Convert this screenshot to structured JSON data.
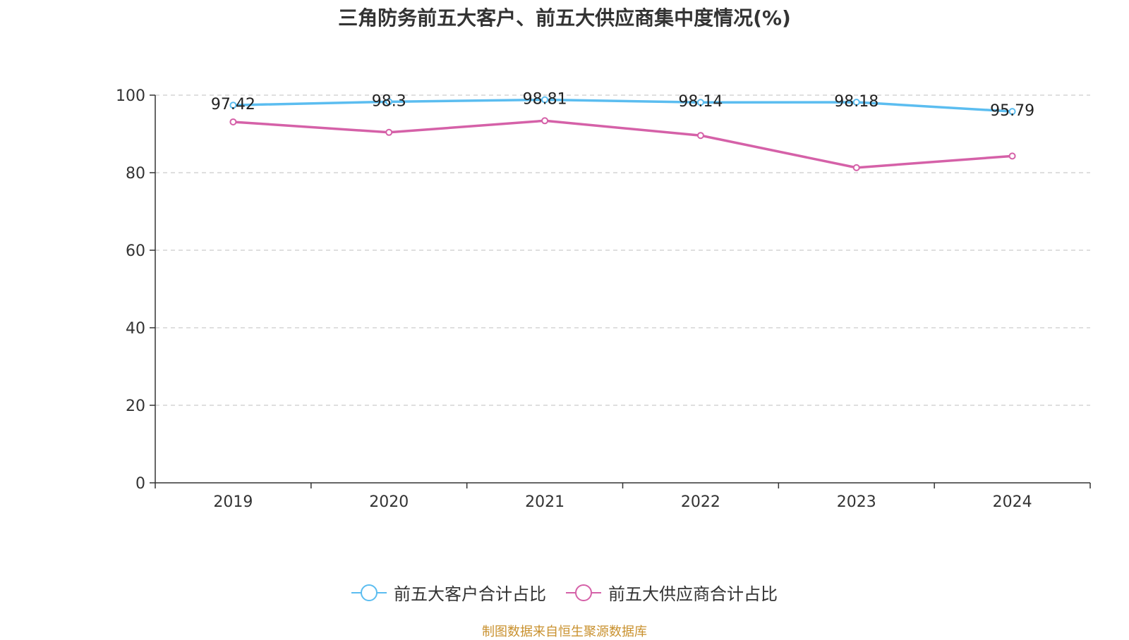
{
  "chart_data": {
    "type": "line",
    "title": "三角防务前五大客户、前五大供应商集中度情况(%)",
    "categories": [
      "2019",
      "2020",
      "2021",
      "2022",
      "2023",
      "2024"
    ],
    "ylim": [
      0,
      100
    ],
    "yticks": [
      0,
      20,
      40,
      60,
      80,
      100
    ],
    "grid": true,
    "legend_position": "bottom",
    "series": [
      {
        "name": "前五大客户合计占比",
        "color": "#5bbdf0",
        "values": [
          97.42,
          98.3,
          98.81,
          98.14,
          98.18,
          95.79
        ],
        "labels": [
          "97.42",
          "98.3",
          "98.81",
          "98.14",
          "98.18",
          "95.79"
        ],
        "show_labels": true
      },
      {
        "name": "前五大供应商合计占比",
        "color": "#d561a8",
        "values": [
          93.1,
          90.4,
          93.4,
          89.6,
          81.3,
          84.3
        ],
        "show_labels": false
      }
    ]
  },
  "source": "制图数据来自恒生聚源数据库"
}
